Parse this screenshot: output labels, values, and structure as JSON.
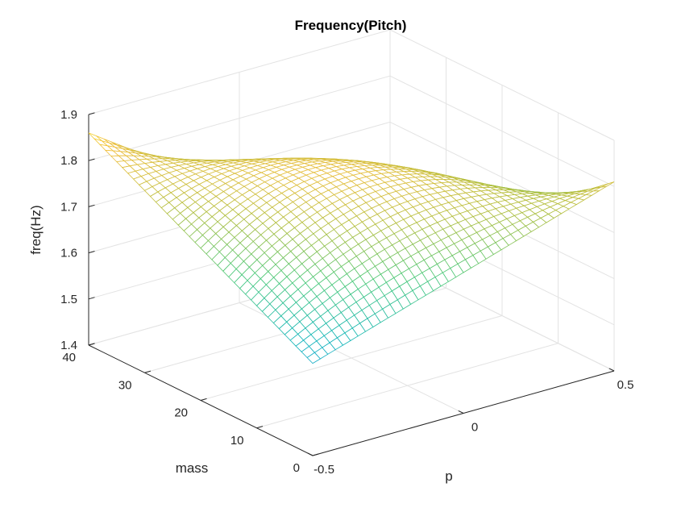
{
  "chart_data": {
    "type": "surface",
    "title": "Frequency(Pitch)",
    "xlabel": "p",
    "ylabel": "mass",
    "zlabel": "freq(Hz)",
    "xlim": [
      -0.5,
      0.5
    ],
    "ylim": [
      0,
      40
    ],
    "zlim": [
      1.4,
      1.9
    ],
    "xticks": [
      "-0.5",
      "0",
      "0.5"
    ],
    "yticks": [
      "0",
      "10",
      "20",
      "30",
      "40"
    ],
    "zticks": [
      "1.4",
      "1.5",
      "1.6",
      "1.7",
      "1.8",
      "1.9"
    ],
    "grid": true,
    "colormap": "parula",
    "mesh": {
      "x_samples": 41,
      "y_samples": 41
    },
    "surface_corners": [
      {
        "p": -0.5,
        "mass": 0,
        "freq": 1.6
      },
      {
        "p": -0.5,
        "mass": 40,
        "freq": 1.86
      },
      {
        "p": 0.5,
        "mass": 0,
        "freq": 1.81
      },
      {
        "p": 0.5,
        "mass": 40,
        "freq": 1.42
      }
    ],
    "approx_samples": [
      {
        "p": -0.5,
        "mass": 20,
        "freq": 1.73
      },
      {
        "p": 0.0,
        "mass": 0,
        "freq": 1.84
      },
      {
        "p": 0.0,
        "mass": 20,
        "freq": 1.82
      },
      {
        "p": 0.0,
        "mass": 40,
        "freq": 1.74
      },
      {
        "p": 0.5,
        "mass": 20,
        "freq": 1.62
      }
    ]
  }
}
